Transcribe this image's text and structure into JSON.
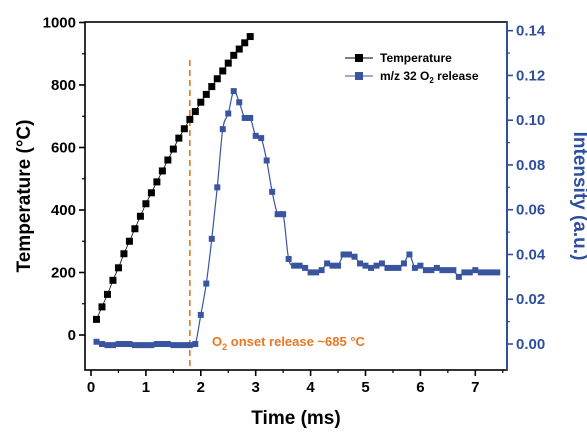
{
  "chart_data": {
    "type": "line",
    "xlabel": "Time (ms)",
    "ylabel_left": "Temperature (°C)",
    "ylabel_right": "Intensity (a.u.)",
    "xlim": [
      0,
      7.5
    ],
    "ylim_left": [
      -100,
      1000
    ],
    "ylim_right": [
      -0.01,
      0.15
    ],
    "x_ticks": [
      "0",
      "1",
      "2",
      "3",
      "4",
      "5",
      "6",
      "7"
    ],
    "y_left_ticks": [
      "0",
      "200",
      "400",
      "600",
      "800",
      "1000"
    ],
    "y_right_ticks": [
      "0.00",
      "0.02",
      "0.04",
      "0.06",
      "0.08",
      "0.10",
      "0.12",
      "0.14"
    ],
    "legend_position": "top-right",
    "grid": false,
    "annotation": {
      "text_prefix": "O",
      "text_sub": "2",
      "text_suffix": " onset release ~685 °C",
      "x": 1.8,
      "color": "#e87722"
    },
    "series": [
      {
        "name": "Temperature",
        "axis": "left",
        "color": "#000000",
        "marker": "square",
        "x": [
          0.1,
          0.2,
          0.3,
          0.4,
          0.5,
          0.6,
          0.7,
          0.8,
          0.9,
          1.0,
          1.1,
          1.2,
          1.3,
          1.4,
          1.5,
          1.6,
          1.7,
          1.8,
          1.9,
          2.0,
          2.1,
          2.2,
          2.3,
          2.4,
          2.5,
          2.6,
          2.7,
          2.8,
          2.9
        ],
        "values": [
          50,
          90,
          130,
          175,
          215,
          260,
          300,
          340,
          380,
          420,
          455,
          490,
          525,
          560,
          595,
          630,
          660,
          690,
          715,
          745,
          770,
          795,
          820,
          845,
          870,
          895,
          915,
          935,
          955
        ]
      },
      {
        "name_prefix": "m/z 32 O",
        "name_sub": "2",
        "name_suffix": " release",
        "axis": "right",
        "color": "#3a55a0",
        "marker": "square",
        "x": [
          0.1,
          0.2,
          0.3,
          0.4,
          0.5,
          0.6,
          0.7,
          0.8,
          0.9,
          1.0,
          1.1,
          1.2,
          1.3,
          1.4,
          1.5,
          1.6,
          1.7,
          1.8,
          1.9,
          2.0,
          2.1,
          2.2,
          2.3,
          2.4,
          2.5,
          2.6,
          2.7,
          2.8,
          2.9,
          3.0,
          3.1,
          3.2,
          3.3,
          3.4,
          3.5,
          3.6,
          3.7,
          3.8,
          3.9,
          4.0,
          4.1,
          4.2,
          4.3,
          4.4,
          4.5,
          4.6,
          4.7,
          4.8,
          4.9,
          5.0,
          5.1,
          5.2,
          5.3,
          5.4,
          5.5,
          5.6,
          5.7,
          5.8,
          5.9,
          6.0,
          6.1,
          6.2,
          6.3,
          6.4,
          6.5,
          6.6,
          6.7,
          6.8,
          6.9,
          7.0,
          7.1,
          7.2,
          7.3,
          7.4
        ],
        "values": [
          0.001,
          0.0,
          -0.0005,
          -0.0005,
          0.0,
          0.0,
          0.0,
          -0.0005,
          -0.0005,
          -0.0005,
          -0.0005,
          0.0,
          0.0,
          0.0,
          -0.0005,
          -0.0005,
          -0.0005,
          -0.0005,
          0.0,
          0.013,
          0.027,
          0.047,
          0.07,
          0.096,
          0.103,
          0.113,
          0.108,
          0.101,
          0.101,
          0.093,
          0.092,
          0.082,
          0.068,
          0.058,
          0.058,
          0.038,
          0.035,
          0.035,
          0.034,
          0.032,
          0.032,
          0.033,
          0.036,
          0.035,
          0.035,
          0.04,
          0.04,
          0.039,
          0.036,
          0.035,
          0.034,
          0.035,
          0.036,
          0.034,
          0.034,
          0.034,
          0.036,
          0.04,
          0.034,
          0.035,
          0.033,
          0.033,
          0.034,
          0.033,
          0.033,
          0.033,
          0.03,
          0.032,
          0.032,
          0.033,
          0.032,
          0.032,
          0.032,
          0.032
        ]
      }
    ]
  }
}
